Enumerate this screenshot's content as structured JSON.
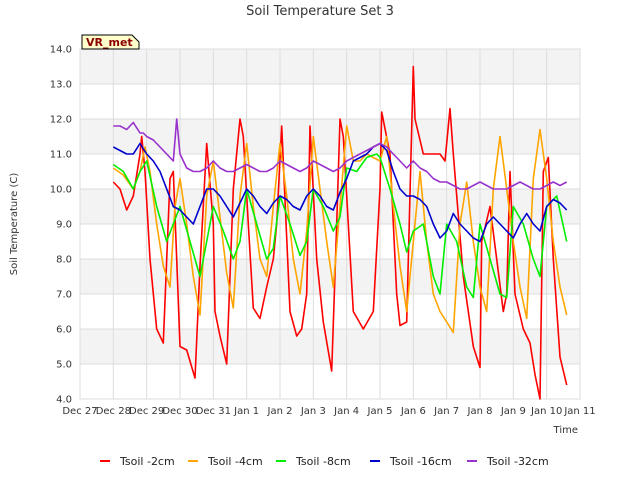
{
  "chart_data": {
    "type": "line",
    "title": "Soil Temperature Set 3",
    "xlabel": "Time",
    "ylabel": "Soil Temperature (C)",
    "site_badge": "VR_met",
    "x_unit": "days",
    "xlim": [
      0,
      15
    ],
    "ylim": [
      4.0,
      14.0
    ],
    "y_ticks": [
      "4.0",
      "5.0",
      "6.0",
      "7.0",
      "8.0",
      "9.0",
      "10.0",
      "11.0",
      "12.0",
      "13.0",
      "14.0"
    ],
    "x_ticks": [
      {
        "value": 0,
        "label": "Dec 27"
      },
      {
        "value": 1,
        "label": "Dec 28"
      },
      {
        "value": 2,
        "label": "Dec 29"
      },
      {
        "value": 3,
        "label": "Dec 30"
      },
      {
        "value": 4,
        "label": "Dec 31"
      },
      {
        "value": 5,
        "label": "Jan 1"
      },
      {
        "value": 6,
        "label": "Jan 2"
      },
      {
        "value": 7,
        "label": "Jan 3"
      },
      {
        "value": 8,
        "label": "Jan 4"
      },
      {
        "value": 9,
        "label": "Jan 5"
      },
      {
        "value": 10,
        "label": "Jan 6"
      },
      {
        "value": 11,
        "label": "Jan 7"
      },
      {
        "value": 12,
        "label": "Jan 8"
      },
      {
        "value": 13,
        "label": "Jan 9"
      },
      {
        "value": 14,
        "label": "Jan 10"
      },
      {
        "value": 15,
        "label": "Jan 11"
      }
    ],
    "grid": true,
    "legend_position": "bottom",
    "series": [
      {
        "name": "Tsoil -2cm",
        "color": "#ff0000",
        "x": [
          1.0,
          1.2,
          1.4,
          1.6,
          1.8,
          1.85,
          1.95,
          2.1,
          2.3,
          2.5,
          2.7,
          2.8,
          2.9,
          3.0,
          3.2,
          3.45,
          3.6,
          3.8,
          4.0,
          4.05,
          4.2,
          4.4,
          4.6,
          4.8,
          4.9,
          5.05,
          5.2,
          5.4,
          5.6,
          5.8,
          5.9,
          6.05,
          6.3,
          6.5,
          6.65,
          6.8,
          6.9,
          7.1,
          7.3,
          7.55,
          7.7,
          7.8,
          7.9,
          8.05,
          8.2,
          8.5,
          8.8,
          9.0,
          9.05,
          9.3,
          9.5,
          9.6,
          9.8,
          10.0,
          10.05,
          10.3,
          10.6,
          10.8,
          10.95,
          11.1,
          11.2,
          11.5,
          11.8,
          12.0,
          12.05,
          12.3,
          12.5,
          12.7,
          12.8,
          12.9,
          13.05,
          13.3,
          13.5,
          13.65,
          13.8,
          13.9,
          14.05,
          14.2,
          14.4,
          14.6
        ],
        "y": [
          10.2,
          10.0,
          9.4,
          9.8,
          11.0,
          11.5,
          10.5,
          8.0,
          6.0,
          5.6,
          10.3,
          10.5,
          8.0,
          5.5,
          5.4,
          4.6,
          7.8,
          11.3,
          9.0,
          6.5,
          5.8,
          5.0,
          10.0,
          12.0,
          11.5,
          9.0,
          6.6,
          6.3,
          7.2,
          8.0,
          9.0,
          11.8,
          6.5,
          5.8,
          6.0,
          7.0,
          11.8,
          8.0,
          6.2,
          4.8,
          9.0,
          12.0,
          11.5,
          9.0,
          6.5,
          6.0,
          6.5,
          10.0,
          12.2,
          11.0,
          7.0,
          6.1,
          6.2,
          13.5,
          12.0,
          11.0,
          11.0,
          11.0,
          10.8,
          12.3,
          11.0,
          7.5,
          5.5,
          4.9,
          8.5,
          9.5,
          8.0,
          6.5,
          7.0,
          10.5,
          7.0,
          6.0,
          5.6,
          4.7,
          4.0,
          10.5,
          10.9,
          8.0,
          5.2,
          4.4
        ]
      },
      {
        "name": "Tsoil -4cm",
        "color": "#ffa500",
        "x": [
          1.0,
          1.3,
          1.6,
          1.8,
          1.95,
          2.1,
          2.3,
          2.5,
          2.7,
          2.85,
          3.0,
          3.2,
          3.4,
          3.6,
          3.8,
          4.0,
          4.2,
          4.4,
          4.6,
          4.8,
          5.0,
          5.2,
          5.4,
          5.6,
          5.8,
          6.0,
          6.2,
          6.4,
          6.6,
          6.8,
          7.0,
          7.2,
          7.4,
          7.6,
          7.8,
          8.0,
          8.2,
          8.4,
          8.6,
          8.8,
          9.0,
          9.2,
          9.4,
          9.6,
          9.8,
          10.0,
          10.2,
          10.4,
          10.6,
          10.8,
          11.0,
          11.2,
          11.4,
          11.6,
          11.8,
          12.0,
          12.2,
          12.4,
          12.6,
          12.8,
          13.0,
          13.2,
          13.4,
          13.6,
          13.8,
          14.0,
          14.2,
          14.4,
          14.6
        ],
        "y": [
          10.6,
          10.4,
          10.0,
          10.5,
          11.2,
          10.5,
          9.0,
          7.8,
          7.2,
          9.5,
          10.3,
          9.0,
          7.5,
          6.4,
          9.8,
          10.8,
          9.2,
          7.6,
          6.6,
          9.8,
          11.3,
          9.5,
          8.0,
          7.5,
          9.5,
          11.3,
          9.8,
          8.0,
          7.0,
          8.8,
          11.5,
          10.0,
          8.5,
          7.2,
          9.5,
          11.8,
          10.8,
          10.8,
          11.0,
          10.9,
          10.8,
          11.5,
          9.5,
          7.8,
          6.5,
          8.5,
          10.5,
          8.5,
          7.0,
          6.5,
          6.2,
          5.9,
          9.0,
          10.2,
          8.5,
          7.2,
          6.5,
          10.0,
          11.5,
          10.0,
          8.5,
          7.2,
          6.3,
          10.3,
          11.7,
          10.3,
          8.5,
          7.2,
          6.4
        ]
      },
      {
        "name": "Tsoil -8cm",
        "color": "#00ee00",
        "x": [
          1.0,
          1.3,
          1.6,
          1.8,
          2.0,
          2.3,
          2.6,
          2.8,
          3.0,
          3.3,
          3.6,
          3.8,
          4.0,
          4.3,
          4.6,
          4.8,
          5.0,
          5.3,
          5.6,
          5.8,
          6.0,
          6.3,
          6.6,
          6.8,
          7.0,
          7.3,
          7.6,
          7.8,
          8.0,
          8.3,
          8.6,
          8.9,
          9.0,
          9.3,
          9.6,
          9.8,
          10.0,
          10.3,
          10.6,
          10.8,
          11.0,
          11.3,
          11.6,
          11.8,
          12.0,
          12.3,
          12.6,
          12.8,
          13.0,
          13.3,
          13.6,
          13.8,
          14.0,
          14.3,
          14.6
        ],
        "y": [
          10.7,
          10.5,
          10.0,
          10.5,
          10.8,
          9.5,
          8.5,
          9.0,
          9.5,
          8.5,
          7.5,
          8.5,
          9.5,
          8.8,
          8.0,
          8.5,
          10.0,
          9.0,
          8.0,
          8.3,
          9.8,
          9.0,
          8.1,
          8.5,
          10.0,
          9.5,
          8.8,
          9.2,
          10.6,
          10.5,
          10.9,
          11.0,
          10.9,
          10.0,
          9.0,
          8.2,
          8.8,
          9.0,
          7.5,
          7.0,
          9.0,
          8.5,
          7.2,
          6.9,
          9.0,
          8.0,
          7.0,
          6.9,
          9.5,
          9.0,
          8.0,
          7.5,
          9.5,
          9.8,
          8.5
        ]
      },
      {
        "name": "Tsoil -16cm",
        "color": "#0000cc",
        "x": [
          1.0,
          1.2,
          1.4,
          1.6,
          1.8,
          2.0,
          2.2,
          2.4,
          2.6,
          2.8,
          3.0,
          3.2,
          3.4,
          3.6,
          3.8,
          4.0,
          4.2,
          4.4,
          4.6,
          4.8,
          5.0,
          5.2,
          5.4,
          5.6,
          5.8,
          6.0,
          6.2,
          6.4,
          6.6,
          6.8,
          7.0,
          7.2,
          7.4,
          7.6,
          7.8,
          8.0,
          8.2,
          8.4,
          8.6,
          8.8,
          9.0,
          9.2,
          9.4,
          9.6,
          9.8,
          10.0,
          10.2,
          10.4,
          10.6,
          10.8,
          11.0,
          11.2,
          11.4,
          11.6,
          11.8,
          12.0,
          12.2,
          12.4,
          12.6,
          12.8,
          13.0,
          13.2,
          13.4,
          13.6,
          13.8,
          14.0,
          14.2,
          14.4,
          14.6
        ],
        "y": [
          11.2,
          11.1,
          11.0,
          11.0,
          11.3,
          11.0,
          10.8,
          10.5,
          10.0,
          9.5,
          9.4,
          9.2,
          9.0,
          9.5,
          10.0,
          10.0,
          9.8,
          9.5,
          9.2,
          9.6,
          10.0,
          9.8,
          9.5,
          9.3,
          9.6,
          9.8,
          9.7,
          9.5,
          9.4,
          9.8,
          10.0,
          9.8,
          9.5,
          9.4,
          9.9,
          10.3,
          10.8,
          10.9,
          11.0,
          11.2,
          11.3,
          11.1,
          10.5,
          10.0,
          9.8,
          9.8,
          9.7,
          9.5,
          9.0,
          8.6,
          8.8,
          9.3,
          9.0,
          8.8,
          8.6,
          8.5,
          9.0,
          9.2,
          9.0,
          8.8,
          8.6,
          9.0,
          9.3,
          9.0,
          8.8,
          9.5,
          9.7,
          9.6,
          9.4
        ]
      },
      {
        "name": "Tsoil -32cm",
        "color": "#9932cc",
        "x": [
          1.0,
          1.2,
          1.4,
          1.6,
          1.8,
          1.9,
          2.0,
          2.2,
          2.4,
          2.6,
          2.8,
          2.9,
          3.0,
          3.2,
          3.4,
          3.6,
          3.8,
          4.0,
          4.2,
          4.4,
          4.6,
          4.8,
          5.0,
          5.2,
          5.4,
          5.6,
          5.8,
          6.0,
          6.2,
          6.4,
          6.6,
          6.8,
          7.0,
          7.2,
          7.4,
          7.6,
          7.8,
          8.0,
          8.2,
          8.4,
          8.6,
          8.8,
          9.0,
          9.2,
          9.4,
          9.6,
          9.8,
          10.0,
          10.2,
          10.4,
          10.6,
          10.8,
          11.0,
          11.2,
          11.4,
          11.6,
          11.8,
          12.0,
          12.2,
          12.4,
          12.6,
          12.8,
          13.0,
          13.2,
          13.4,
          13.6,
          13.8,
          14.0,
          14.2,
          14.4,
          14.6
        ],
        "y": [
          11.8,
          11.8,
          11.7,
          11.9,
          11.6,
          11.6,
          11.5,
          11.4,
          11.2,
          11.0,
          10.8,
          12.0,
          11.0,
          10.6,
          10.5,
          10.5,
          10.6,
          10.8,
          10.6,
          10.5,
          10.5,
          10.6,
          10.7,
          10.6,
          10.5,
          10.5,
          10.6,
          10.8,
          10.7,
          10.6,
          10.5,
          10.6,
          10.8,
          10.7,
          10.6,
          10.5,
          10.6,
          10.8,
          10.9,
          11.0,
          11.1,
          11.2,
          11.3,
          11.2,
          11.0,
          10.8,
          10.6,
          10.8,
          10.6,
          10.5,
          10.3,
          10.2,
          10.2,
          10.1,
          10.0,
          10.0,
          10.1,
          10.2,
          10.1,
          10.0,
          10.0,
          10.0,
          10.1,
          10.2,
          10.1,
          10.0,
          10.0,
          10.1,
          10.2,
          10.1,
          10.2
        ]
      }
    ]
  }
}
